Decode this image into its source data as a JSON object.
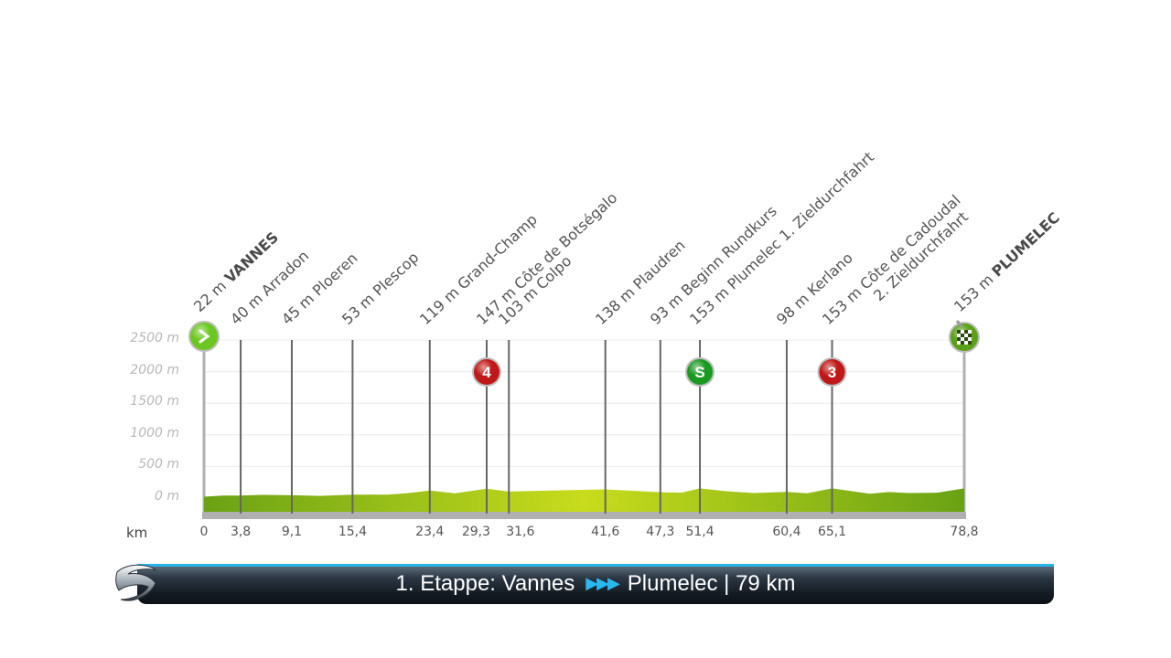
{
  "chart_data": {
    "type": "area",
    "x_unit_label": "km",
    "y_ticks": [
      "2500 m",
      "2000 m",
      "1500 m",
      "1000 m",
      "500 m",
      "0 m"
    ],
    "ylim": [
      0,
      2500
    ],
    "xlim": [
      0,
      78.8
    ],
    "x_tick_labels": [
      {
        "km": 0,
        "label": "0"
      },
      {
        "km": 3.8,
        "label": "3,8"
      },
      {
        "km": 9.1,
        "label": "9,1"
      },
      {
        "km": 15.4,
        "label": "15,4"
      },
      {
        "km": 23.4,
        "label": "23,4"
      },
      {
        "km": 29.3,
        "label": "29,3"
      },
      {
        "km": 31.6,
        "label": "31,6"
      },
      {
        "km": 41.6,
        "label": "41,6"
      },
      {
        "km": 47.3,
        "label": "47,3"
      },
      {
        "km": 51.4,
        "label": "51,4"
      },
      {
        "km": 60.4,
        "label": "60,4"
      },
      {
        "km": 65.1,
        "label": "65,1"
      },
      {
        "km": 78.8,
        "label": "78,8"
      }
    ],
    "profile": [
      {
        "km": 0,
        "alt": 22
      },
      {
        "km": 2,
        "alt": 40
      },
      {
        "km": 3.8,
        "alt": 40
      },
      {
        "km": 6,
        "alt": 50
      },
      {
        "km": 9.1,
        "alt": 45
      },
      {
        "km": 12,
        "alt": 35
      },
      {
        "km": 15.4,
        "alt": 53
      },
      {
        "km": 19,
        "alt": 55
      },
      {
        "km": 21,
        "alt": 75
      },
      {
        "km": 23.4,
        "alt": 119
      },
      {
        "km": 26,
        "alt": 75
      },
      {
        "km": 29.3,
        "alt": 147
      },
      {
        "km": 31.6,
        "alt": 103
      },
      {
        "km": 36,
        "alt": 120
      },
      {
        "km": 41.6,
        "alt": 138
      },
      {
        "km": 45,
        "alt": 110
      },
      {
        "km": 47.3,
        "alt": 93
      },
      {
        "km": 49.5,
        "alt": 85
      },
      {
        "km": 51.4,
        "alt": 153
      },
      {
        "km": 54,
        "alt": 110
      },
      {
        "km": 57,
        "alt": 80
      },
      {
        "km": 60.4,
        "alt": 98
      },
      {
        "km": 62.5,
        "alt": 75
      },
      {
        "km": 65.1,
        "alt": 153
      },
      {
        "km": 69,
        "alt": 70
      },
      {
        "km": 71,
        "alt": 95
      },
      {
        "km": 73,
        "alt": 80
      },
      {
        "km": 76,
        "alt": 85
      },
      {
        "km": 78.8,
        "alt": 153
      }
    ],
    "waypoints": [
      {
        "km": 0,
        "alt": "22 m",
        "name": "VANNES",
        "bold": true,
        "marker": "start"
      },
      {
        "km": 3.8,
        "alt": "40 m",
        "name": "Arradon"
      },
      {
        "km": 9.1,
        "alt": "45 m",
        "name": "Ploeren"
      },
      {
        "km": 15.4,
        "alt": "53 m",
        "name": "Plescop"
      },
      {
        "km": 23.4,
        "alt": "119 m",
        "name": "Grand-Champ"
      },
      {
        "km": 29.3,
        "alt": "147 m",
        "name": "Côte de Botségalo",
        "marker": "climb",
        "marker_text": "4"
      },
      {
        "km": 31.6,
        "alt": "103 m",
        "name": "Colpo"
      },
      {
        "km": 41.6,
        "alt": "138 m",
        "name": "Plaudren"
      },
      {
        "km": 47.3,
        "alt": "93 m",
        "name": "Beginn Rundkurs"
      },
      {
        "km": 51.4,
        "alt": "153 m",
        "name": "Plumelec 1. Zieldurchfahrt",
        "marker": "sprint",
        "marker_text": "S"
      },
      {
        "km": 60.4,
        "alt": "98 m",
        "name": "Kerlano"
      },
      {
        "km": 65.1,
        "alt": "153 m",
        "name": "Côte de Cadoudal",
        "name2": "2. Zieldurchfahrt",
        "marker": "climb",
        "marker_text": "3"
      },
      {
        "km": 78.8,
        "alt": "153 m",
        "name": "PLUMELEC",
        "bold": true,
        "marker": "finish"
      }
    ],
    "colors": {
      "fill_dark": "#6aa214",
      "fill_light": "#c8dc1c",
      "start": "#6cc820",
      "sprint": "#1a9a20",
      "climb": "#c01818",
      "axis": "#b0b0b0",
      "line": "#666666"
    }
  },
  "footer": {
    "stage": "1. Etappe:",
    "from": "Vannes",
    "arrows": "▶▶▶",
    "to": "Plumelec | 79 km"
  }
}
